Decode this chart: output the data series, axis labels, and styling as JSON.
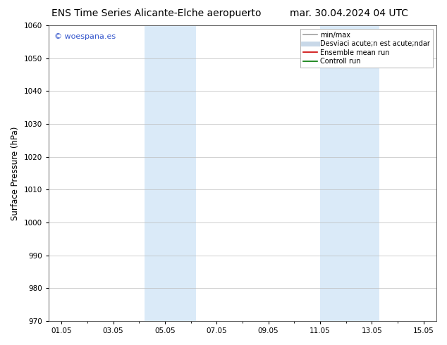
{
  "title_left": "ENS Time Series Alicante-Elche aeropuerto",
  "title_right": "mar. 30.04.2024 04 UTC",
  "ylabel": "Surface Pressure (hPa)",
  "ylim": [
    970,
    1060
  ],
  "yticks": [
    970,
    980,
    990,
    1000,
    1010,
    1020,
    1030,
    1040,
    1050,
    1060
  ],
  "xtick_labels": [
    "01.05",
    "03.05",
    "05.05",
    "07.05",
    "09.05",
    "11.05",
    "13.05",
    "15.05"
  ],
  "xstart_day": 1,
  "xend_day": 16,
  "shaded_bands": [
    {
      "day_start": 4.0,
      "day_end": 5.5
    },
    {
      "day_start": 11.0,
      "day_end": 12.5
    }
  ],
  "shaded_color": "#daeaf8",
  "watermark_text": "© woespana.es",
  "watermark_color": "#3355cc",
  "legend_entries": [
    {
      "label": "min/max",
      "color": "#a0a0a0",
      "lw": 1.2
    },
    {
      "label": "Desviaci acute;n est acute;ndar",
      "color": "#c8d8e8",
      "lw": 5
    },
    {
      "label": "Ensemble mean run",
      "color": "#cc0000",
      "lw": 1.2
    },
    {
      "label": "Controll run",
      "color": "#007700",
      "lw": 1.2
    }
  ],
  "bg_color": "#ffffff",
  "grid_color": "#bbbbbb",
  "title_fontsize": 10,
  "label_fontsize": 8.5,
  "tick_fontsize": 7.5,
  "legend_fontsize": 7
}
